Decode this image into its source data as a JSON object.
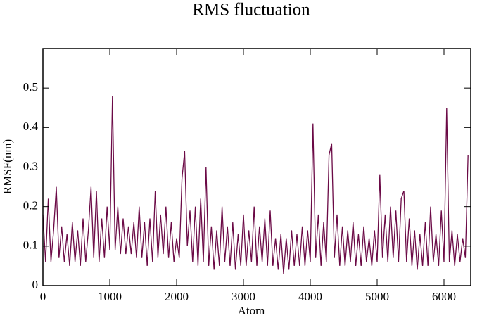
{
  "chart_data": {
    "type": "line",
    "title": "RMS fluctuation",
    "xlabel": "Atom",
    "ylabel": "RMSF(nm)",
    "x": [
      0,
      40,
      80,
      120,
      160,
      200,
      240,
      280,
      320,
      360,
      400,
      440,
      480,
      520,
      560,
      600,
      640,
      680,
      720,
      760,
      800,
      840,
      880,
      920,
      960,
      1000,
      1040,
      1080,
      1120,
      1160,
      1200,
      1240,
      1280,
      1320,
      1360,
      1400,
      1440,
      1480,
      1520,
      1560,
      1600,
      1640,
      1680,
      1720,
      1760,
      1800,
      1840,
      1880,
      1920,
      1960,
      2000,
      2040,
      2080,
      2120,
      2160,
      2200,
      2240,
      2280,
      2320,
      2360,
      2400,
      2440,
      2480,
      2520,
      2560,
      2600,
      2640,
      2680,
      2720,
      2760,
      2800,
      2840,
      2880,
      2920,
      2960,
      3000,
      3040,
      3080,
      3120,
      3160,
      3200,
      3240,
      3280,
      3320,
      3360,
      3400,
      3440,
      3480,
      3520,
      3560,
      3600,
      3640,
      3680,
      3720,
      3760,
      3800,
      3840,
      3880,
      3920,
      3960,
      4000,
      4040,
      4080,
      4120,
      4160,
      4200,
      4240,
      4280,
      4320,
      4360,
      4400,
      4440,
      4480,
      4520,
      4560,
      4600,
      4640,
      4680,
      4720,
      4760,
      4800,
      4840,
      4880,
      4920,
      4960,
      5000,
      5040,
      5080,
      5120,
      5160,
      5200,
      5240,
      5280,
      5320,
      5360,
      5400,
      5440,
      5480,
      5520,
      5560,
      5600,
      5640,
      5680,
      5720,
      5760,
      5800,
      5840,
      5880,
      5920,
      5960,
      6000,
      6040,
      6080,
      6120,
      6160,
      6200,
      6240,
      6280,
      6320,
      6360
    ],
    "series": [
      {
        "name": "RMSF",
        "color": "#6b0a46",
        "values": [
          0.18,
          0.06,
          0.22,
          0.06,
          0.14,
          0.25,
          0.07,
          0.15,
          0.06,
          0.13,
          0.05,
          0.16,
          0.06,
          0.14,
          0.05,
          0.17,
          0.06,
          0.14,
          0.25,
          0.07,
          0.24,
          0.06,
          0.17,
          0.07,
          0.2,
          0.09,
          0.48,
          0.09,
          0.2,
          0.08,
          0.17,
          0.08,
          0.15,
          0.08,
          0.16,
          0.07,
          0.2,
          0.07,
          0.16,
          0.05,
          0.17,
          0.06,
          0.24,
          0.07,
          0.18,
          0.08,
          0.2,
          0.07,
          0.16,
          0.06,
          0.12,
          0.07,
          0.27,
          0.34,
          0.1,
          0.19,
          0.06,
          0.2,
          0.05,
          0.22,
          0.06,
          0.3,
          0.05,
          0.15,
          0.04,
          0.14,
          0.05,
          0.2,
          0.06,
          0.15,
          0.05,
          0.16,
          0.04,
          0.13,
          0.05,
          0.18,
          0.05,
          0.14,
          0.06,
          0.2,
          0.05,
          0.15,
          0.06,
          0.17,
          0.05,
          0.19,
          0.05,
          0.12,
          0.04,
          0.13,
          0.03,
          0.12,
          0.04,
          0.14,
          0.05,
          0.13,
          0.05,
          0.15,
          0.05,
          0.14,
          0.06,
          0.41,
          0.07,
          0.18,
          0.05,
          0.16,
          0.06,
          0.33,
          0.36,
          0.07,
          0.18,
          0.05,
          0.15,
          0.05,
          0.14,
          0.06,
          0.16,
          0.05,
          0.13,
          0.05,
          0.15,
          0.06,
          0.12,
          0.05,
          0.14,
          0.06,
          0.28,
          0.07,
          0.18,
          0.06,
          0.2,
          0.07,
          0.19,
          0.06,
          0.22,
          0.24,
          0.06,
          0.17,
          0.05,
          0.14,
          0.04,
          0.13,
          0.05,
          0.16,
          0.05,
          0.2,
          0.06,
          0.13,
          0.05,
          0.19,
          0.06,
          0.45,
          0.06,
          0.14,
          0.05,
          0.13,
          0.06,
          0.12,
          0.07,
          0.33
        ]
      }
    ],
    "xlim": [
      0,
      6400
    ],
    "xticks": [
      0,
      1000,
      2000,
      3000,
      4000,
      5000,
      6000
    ],
    "ylim": [
      0,
      0.6
    ],
    "yticks": [
      0,
      0.1,
      0.2,
      0.3,
      0.4,
      0.5
    ]
  }
}
